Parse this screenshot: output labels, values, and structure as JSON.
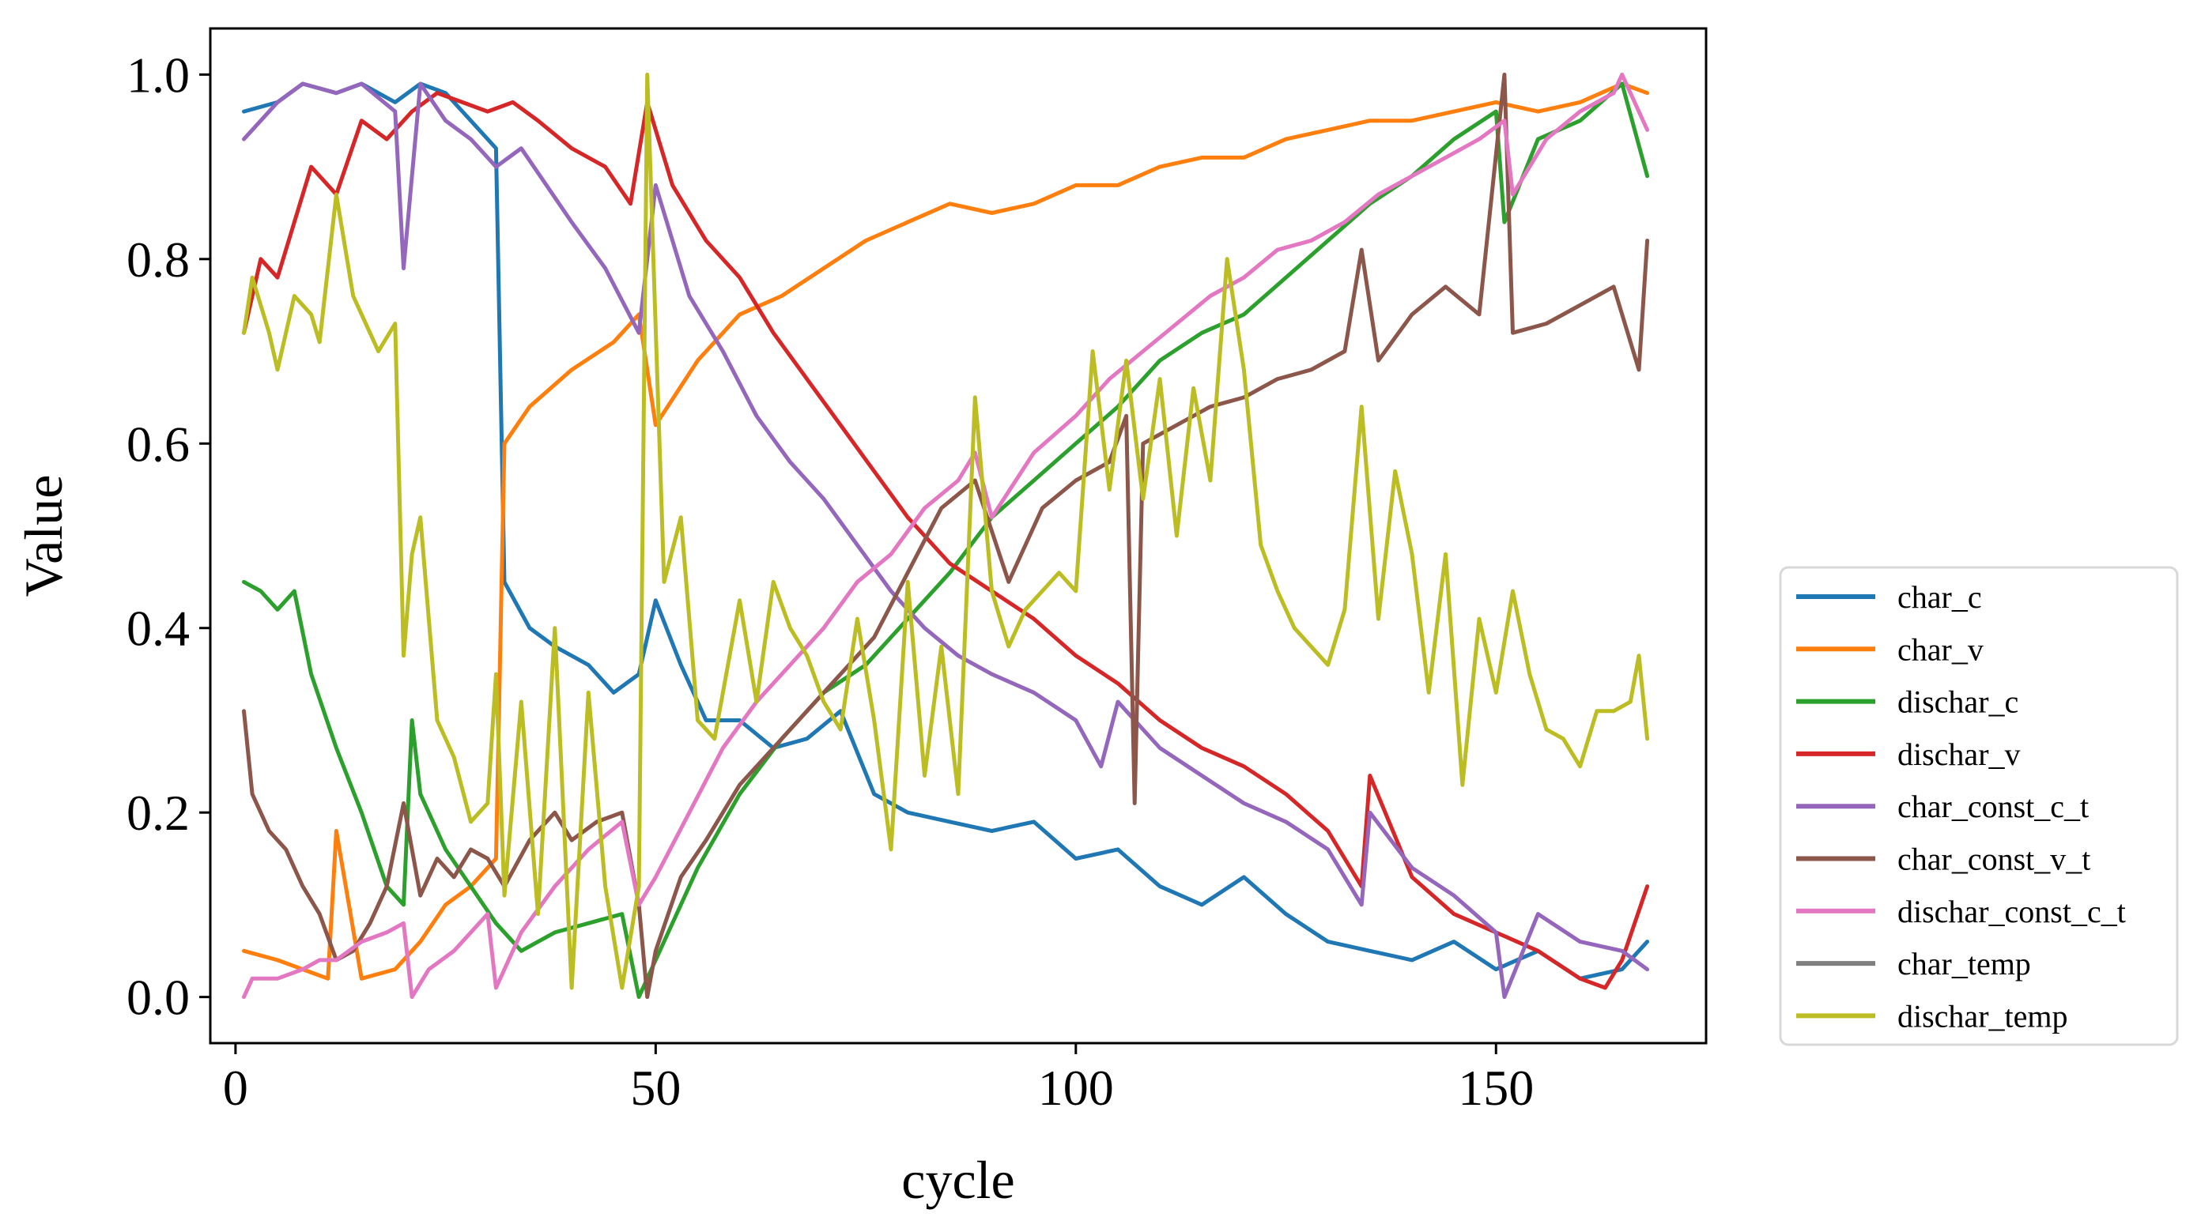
{
  "chart_data": {
    "type": "line",
    "title": "",
    "xlabel": "cycle",
    "ylabel": "Value",
    "xlim": [
      -3,
      175
    ],
    "ylim": [
      -0.05,
      1.05
    ],
    "xticks": [
      0,
      50,
      100,
      150
    ],
    "yticks": [
      0.0,
      0.2,
      0.4,
      0.6,
      0.8,
      1.0
    ],
    "xtick_labels": [
      "0",
      "50",
      "100",
      "150"
    ],
    "ytick_labels": [
      "0.0",
      "0.2",
      "0.4",
      "0.6",
      "0.8",
      "1.0"
    ],
    "grid": false,
    "legend_position": "outside-right-bottom",
    "series": [
      {
        "name": "char_c",
        "color": "#1f77b4",
        "x": [
          1,
          5,
          8,
          12,
          15,
          19,
          22,
          25,
          28,
          31,
          32,
          35,
          38,
          42,
          45,
          48,
          50,
          53,
          56,
          60,
          64,
          68,
          72,
          76,
          80,
          85,
          90,
          95,
          100,
          105,
          110,
          115,
          120,
          125,
          130,
          135,
          140,
          145,
          150,
          155,
          160,
          165,
          168
        ],
        "values": [
          0.96,
          0.97,
          0.99,
          0.98,
          0.99,
          0.97,
          0.99,
          0.98,
          0.95,
          0.92,
          0.45,
          0.4,
          0.38,
          0.36,
          0.33,
          0.35,
          0.43,
          0.36,
          0.3,
          0.3,
          0.27,
          0.28,
          0.31,
          0.22,
          0.2,
          0.19,
          0.18,
          0.19,
          0.15,
          0.16,
          0.12,
          0.1,
          0.13,
          0.09,
          0.06,
          0.05,
          0.04,
          0.06,
          0.03,
          0.05,
          0.02,
          0.03,
          0.06
        ]
      },
      {
        "name": "char_v",
        "color": "#ff7f0e",
        "x": [
          1,
          5,
          8,
          11,
          12,
          15,
          19,
          22,
          25,
          28,
          31,
          32,
          35,
          40,
          45,
          48,
          50,
          55,
          60,
          65,
          70,
          75,
          80,
          85,
          90,
          95,
          100,
          105,
          110,
          115,
          120,
          125,
          130,
          135,
          140,
          145,
          150,
          155,
          160,
          165,
          168
        ],
        "values": [
          0.05,
          0.04,
          0.03,
          0.02,
          0.18,
          0.02,
          0.03,
          0.06,
          0.1,
          0.12,
          0.15,
          0.6,
          0.64,
          0.68,
          0.71,
          0.74,
          0.62,
          0.69,
          0.74,
          0.76,
          0.79,
          0.82,
          0.84,
          0.86,
          0.85,
          0.86,
          0.88,
          0.88,
          0.9,
          0.91,
          0.91,
          0.93,
          0.94,
          0.95,
          0.95,
          0.96,
          0.97,
          0.96,
          0.97,
          0.99,
          0.98
        ]
      },
      {
        "name": "dischar_c",
        "color": "#2ca02c",
        "x": [
          1,
          3,
          5,
          7,
          9,
          12,
          15,
          18,
          20,
          21,
          22,
          25,
          28,
          31,
          34,
          38,
          42,
          46,
          48,
          50,
          55,
          60,
          65,
          70,
          75,
          80,
          85,
          90,
          95,
          100,
          105,
          110,
          115,
          120,
          125,
          130,
          135,
          140,
          145,
          150,
          151,
          155,
          160,
          165,
          168
        ],
        "values": [
          0.45,
          0.44,
          0.42,
          0.44,
          0.35,
          0.27,
          0.2,
          0.12,
          0.1,
          0.3,
          0.22,
          0.16,
          0.12,
          0.08,
          0.05,
          0.07,
          0.08,
          0.09,
          0.0,
          0.04,
          0.14,
          0.22,
          0.28,
          0.33,
          0.36,
          0.41,
          0.46,
          0.52,
          0.56,
          0.6,
          0.64,
          0.69,
          0.72,
          0.74,
          0.78,
          0.82,
          0.86,
          0.89,
          0.93,
          0.96,
          0.84,
          0.93,
          0.95,
          0.99,
          0.89
        ]
      },
      {
        "name": "dischar_v",
        "color": "#d62728",
        "x": [
          1,
          3,
          5,
          7,
          9,
          12,
          15,
          18,
          21,
          24,
          27,
          30,
          33,
          36,
          40,
          44,
          47,
          49,
          52,
          56,
          60,
          64,
          68,
          72,
          76,
          80,
          85,
          90,
          95,
          100,
          105,
          110,
          115,
          120,
          125,
          130,
          134,
          135,
          140,
          145,
          150,
          155,
          160,
          163,
          165,
          168
        ],
        "values": [
          0.72,
          0.8,
          0.78,
          0.84,
          0.9,
          0.87,
          0.95,
          0.93,
          0.96,
          0.98,
          0.97,
          0.96,
          0.97,
          0.95,
          0.92,
          0.9,
          0.86,
          0.97,
          0.88,
          0.82,
          0.78,
          0.72,
          0.67,
          0.62,
          0.57,
          0.52,
          0.47,
          0.44,
          0.41,
          0.37,
          0.34,
          0.3,
          0.27,
          0.25,
          0.22,
          0.18,
          0.12,
          0.24,
          0.13,
          0.09,
          0.07,
          0.05,
          0.02,
          0.01,
          0.04,
          0.12
        ]
      },
      {
        "name": "char_const_c_t",
        "color": "#9467bd",
        "x": [
          1,
          5,
          8,
          12,
          15,
          19,
          20,
          22,
          25,
          28,
          31,
          34,
          37,
          40,
          44,
          48,
          50,
          54,
          58,
          62,
          66,
          70,
          74,
          78,
          82,
          86,
          90,
          95,
          100,
          103,
          105,
          110,
          115,
          120,
          125,
          130,
          134,
          135,
          140,
          145,
          150,
          151,
          155,
          160,
          165,
          168
        ],
        "values": [
          0.93,
          0.97,
          0.99,
          0.98,
          0.99,
          0.96,
          0.79,
          0.99,
          0.95,
          0.93,
          0.9,
          0.92,
          0.88,
          0.84,
          0.79,
          0.72,
          0.88,
          0.76,
          0.7,
          0.63,
          0.58,
          0.54,
          0.49,
          0.44,
          0.4,
          0.37,
          0.35,
          0.33,
          0.3,
          0.25,
          0.32,
          0.27,
          0.24,
          0.21,
          0.19,
          0.16,
          0.1,
          0.2,
          0.14,
          0.11,
          0.07,
          0.0,
          0.09,
          0.06,
          0.05,
          0.03
        ]
      },
      {
        "name": "char_const_v_t",
        "color": "#8c564b",
        "x": [
          1,
          2,
          4,
          6,
          8,
          10,
          12,
          14,
          16,
          18,
          20,
          22,
          24,
          26,
          28,
          30,
          32,
          35,
          38,
          40,
          43,
          46,
          48,
          49,
          50,
          53,
          56,
          60,
          64,
          68,
          72,
          76,
          80,
          84,
          88,
          92,
          96,
          100,
          104,
          106,
          107,
          108,
          112,
          116,
          120,
          124,
          128,
          132,
          134,
          136,
          140,
          144,
          148,
          151,
          152,
          156,
          160,
          164,
          167,
          168
        ],
        "values": [
          0.31,
          0.22,
          0.18,
          0.16,
          0.12,
          0.09,
          0.04,
          0.05,
          0.08,
          0.12,
          0.21,
          0.11,
          0.15,
          0.13,
          0.16,
          0.15,
          0.12,
          0.17,
          0.2,
          0.17,
          0.19,
          0.2,
          0.1,
          0.0,
          0.05,
          0.13,
          0.17,
          0.23,
          0.27,
          0.31,
          0.35,
          0.39,
          0.46,
          0.53,
          0.56,
          0.45,
          0.53,
          0.56,
          0.58,
          0.63,
          0.21,
          0.6,
          0.62,
          0.64,
          0.65,
          0.67,
          0.68,
          0.7,
          0.81,
          0.69,
          0.74,
          0.77,
          0.74,
          1.0,
          0.72,
          0.73,
          0.75,
          0.77,
          0.68,
          0.82
        ]
      },
      {
        "name": "dischar_const_c_t",
        "color": "#e377c2",
        "x": [
          1,
          2,
          5,
          8,
          10,
          12,
          15,
          18,
          20,
          21,
          23,
          26,
          30,
          31,
          34,
          38,
          42,
          46,
          48,
          50,
          54,
          58,
          62,
          66,
          70,
          74,
          78,
          82,
          86,
          88,
          90,
          95,
          100,
          104,
          108,
          112,
          116,
          120,
          124,
          128,
          132,
          136,
          140,
          144,
          148,
          151,
          152,
          156,
          160,
          164,
          165,
          166,
          168
        ],
        "values": [
          0.0,
          0.02,
          0.02,
          0.03,
          0.04,
          0.04,
          0.06,
          0.07,
          0.08,
          0.0,
          0.03,
          0.05,
          0.09,
          0.01,
          0.07,
          0.12,
          0.16,
          0.19,
          0.1,
          0.13,
          0.2,
          0.27,
          0.32,
          0.36,
          0.4,
          0.45,
          0.48,
          0.53,
          0.56,
          0.59,
          0.52,
          0.59,
          0.63,
          0.67,
          0.7,
          0.73,
          0.76,
          0.78,
          0.81,
          0.82,
          0.84,
          0.87,
          0.89,
          0.91,
          0.93,
          0.95,
          0.87,
          0.93,
          0.96,
          0.98,
          1.0,
          0.98,
          0.94
        ]
      },
      {
        "name": "char_temp",
        "color": "#7f7f7f",
        "x": [],
        "values": []
      },
      {
        "name": "dischar_temp",
        "color": "#bcbd22",
        "x": [
          1,
          2,
          4,
          5,
          7,
          9,
          10,
          12,
          14,
          16,
          17,
          19,
          20,
          21,
          22,
          24,
          26,
          28,
          30,
          31,
          32,
          34,
          36,
          38,
          40,
          42,
          44,
          46,
          48,
          49,
          51,
          53,
          55,
          57,
          60,
          62,
          64,
          66,
          68,
          70,
          72,
          74,
          76,
          78,
          80,
          82,
          84,
          86,
          88,
          90,
          92,
          94,
          96,
          98,
          100,
          102,
          104,
          106,
          108,
          110,
          112,
          114,
          116,
          118,
          120,
          122,
          124,
          126,
          128,
          130,
          132,
          134,
          136,
          138,
          140,
          142,
          144,
          146,
          148,
          150,
          152,
          154,
          156,
          158,
          160,
          162,
          164,
          166,
          167,
          168
        ],
        "values": [
          0.72,
          0.78,
          0.72,
          0.68,
          0.76,
          0.74,
          0.71,
          0.87,
          0.76,
          0.72,
          0.7,
          0.73,
          0.37,
          0.48,
          0.52,
          0.3,
          0.26,
          0.19,
          0.21,
          0.35,
          0.11,
          0.32,
          0.09,
          0.4,
          0.01,
          0.33,
          0.12,
          0.01,
          0.12,
          1.0,
          0.45,
          0.52,
          0.3,
          0.28,
          0.43,
          0.32,
          0.45,
          0.4,
          0.37,
          0.32,
          0.29,
          0.41,
          0.3,
          0.16,
          0.45,
          0.24,
          0.38,
          0.22,
          0.65,
          0.44,
          0.38,
          0.42,
          0.44,
          0.46,
          0.44,
          0.7,
          0.55,
          0.69,
          0.54,
          0.67,
          0.5,
          0.66,
          0.56,
          0.8,
          0.68,
          0.49,
          0.44,
          0.4,
          0.38,
          0.36,
          0.42,
          0.64,
          0.41,
          0.57,
          0.48,
          0.33,
          0.48,
          0.23,
          0.41,
          0.33,
          0.44,
          0.35,
          0.29,
          0.28,
          0.25,
          0.31,
          0.31,
          0.32,
          0.37,
          0.28
        ]
      }
    ]
  }
}
